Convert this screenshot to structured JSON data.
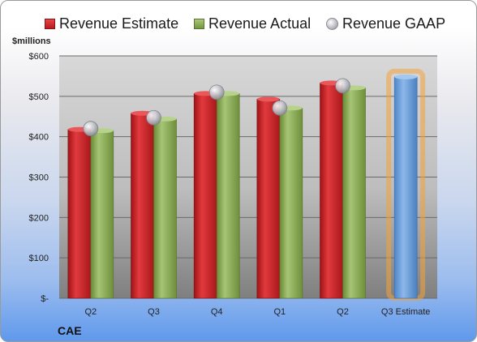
{
  "legend": {
    "estimate": "Revenue Estimate",
    "actual": "Revenue Actual",
    "gaap": "Revenue GAAP"
  },
  "unit_label": "$millions",
  "company": "CAE",
  "colors": {
    "estimate": "#c8282c",
    "actual": "#8aab56",
    "gaap": "#b8b8c2",
    "forecast": "#6fa2dc",
    "forecast_glow": "#f3a23a"
  },
  "chart_data": {
    "type": "bar",
    "categories": [
      "Q2",
      "Q3",
      "Q4",
      "Q1",
      "Q2",
      "Q3 Estimate"
    ],
    "ylim": [
      0,
      600
    ],
    "yticks": [
      0,
      100,
      200,
      300,
      400,
      500,
      600
    ],
    "ytick_labels": [
      "$-",
      "$100",
      "$200",
      "$300",
      "$400",
      "$500",
      "$600"
    ],
    "grid": true,
    "legend_position": "top",
    "series": [
      {
        "name": "Revenue Estimate",
        "values": [
          418,
          458,
          507,
          493,
          533,
          null
        ]
      },
      {
        "name": "Revenue Actual",
        "values": [
          415,
          444,
          507,
          471,
          521,
          null
        ]
      },
      {
        "name": "Revenue GAAP",
        "values": [
          420,
          447,
          510,
          471,
          526,
          null
        ]
      }
    ],
    "forecast": {
      "category": "Q3 Estimate",
      "value": 548
    }
  }
}
